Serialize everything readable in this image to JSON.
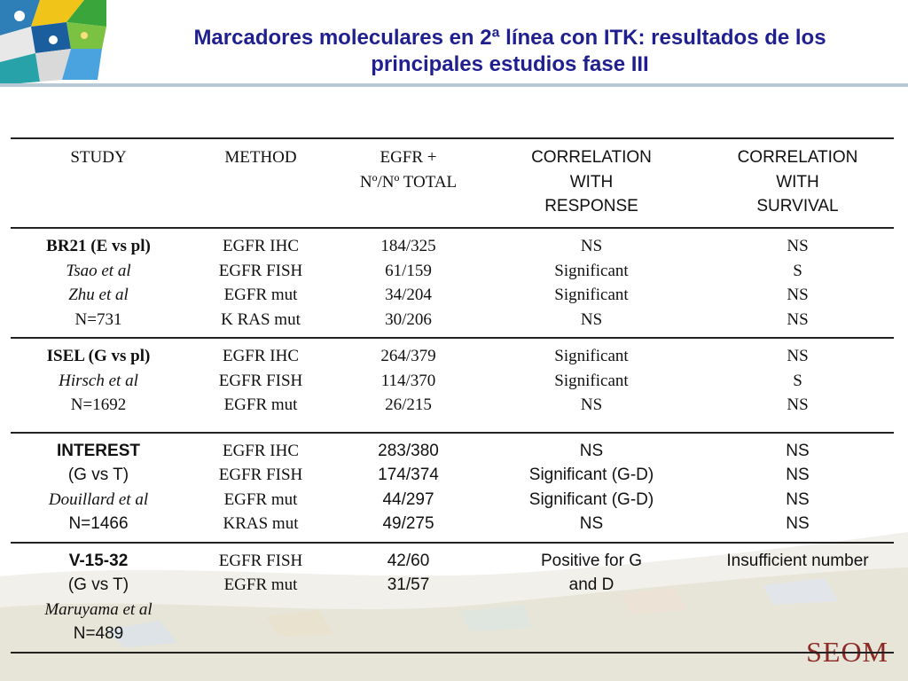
{
  "title": {
    "line1": "Marcadores moleculares en 2ª línea con ITK: resultados de los",
    "line2": "principales estudios fase III"
  },
  "logo": "SEOM",
  "table": {
    "headers": {
      "study": "STUDY",
      "method": "METHOD",
      "egfr1": "EGFR +",
      "egfr2": "Nº/Nº TOTAL",
      "resp1": "CORRELATION",
      "resp2": "WITH",
      "resp3": "RESPONSE",
      "surv1": "CORRELATION",
      "surv2": "WITH",
      "surv3": "SURVIVAL"
    },
    "groups": [
      {
        "study": [
          "BR21 (E vs pl)",
          "Tsao et al",
          "Zhu et al",
          "N=731"
        ],
        "method": [
          "EGFR IHC",
          "EGFR FISH",
          "EGFR mut",
          "K RAS mut"
        ],
        "egfr": [
          "184/325",
          "61/159",
          "34/204",
          "30/206"
        ],
        "response": [
          "NS",
          "Significant",
          "Significant",
          "NS"
        ],
        "survival": [
          "NS",
          "S",
          "NS",
          "NS"
        ]
      },
      {
        "study": [
          "ISEL (G vs pl)",
          "Hirsch et al",
          "N=1692"
        ],
        "method": [
          "EGFR IHC",
          "EGFR FISH",
          "EGFR mut"
        ],
        "egfr": [
          "264/379",
          "114/370",
          "26/215"
        ],
        "response": [
          "Significant",
          "Significant",
          "NS"
        ],
        "survival": [
          "NS",
          "S",
          "NS"
        ]
      },
      {
        "study": [
          "INTEREST",
          "(G vs T)",
          "Douillard et al",
          "N=1466"
        ],
        "method": [
          "EGFR IHC",
          "EGFR FISH",
          "EGFR mut",
          "KRAS mut"
        ],
        "egfr": [
          "283/380",
          "174/374",
          "44/297",
          "49/275"
        ],
        "response": [
          "NS",
          "Significant (G-D)",
          "Significant (G-D)",
          "NS"
        ],
        "survival": [
          "NS",
          "NS",
          "NS",
          "NS"
        ]
      },
      {
        "study": [
          "V-15-32",
          "(G vs T)",
          "Maruyama et al",
          "N=489"
        ],
        "method": [
          "EGFR FISH",
          "EGFR mut"
        ],
        "egfr": [
          "42/60",
          "31/57"
        ],
        "response": [
          "Positive for G",
          "and D"
        ],
        "survival": [
          "Insufficient number"
        ]
      }
    ]
  }
}
